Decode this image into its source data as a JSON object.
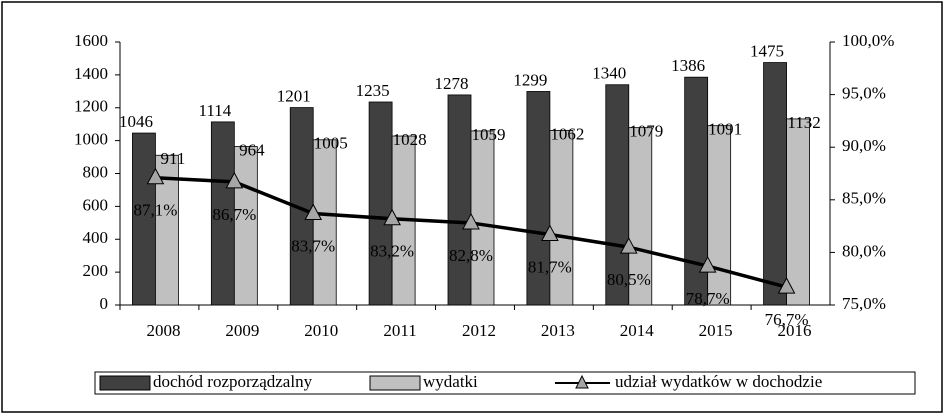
{
  "chart_data": {
    "type": "bar_line",
    "categories": [
      "2008",
      "2009",
      "2010",
      "2011",
      "2012",
      "2013",
      "2014",
      "2015",
      "2016"
    ],
    "series": [
      {
        "name": "dochód rozporządzalny",
        "color": "#404040",
        "values": [
          1046,
          1114,
          1201,
          1235,
          1278,
          1299,
          1340,
          1386,
          1475
        ]
      },
      {
        "name": "wydatki",
        "color": "#c0c0c0",
        "values": [
          911,
          964,
          1005,
          1028,
          1059,
          1062,
          1079,
          1091,
          1132
        ]
      },
      {
        "name": "udział wydatków w dochodzie",
        "color": "#000000",
        "axis": "y2",
        "values": [
          87.1,
          86.7,
          83.7,
          83.2,
          82.8,
          81.7,
          80.5,
          78.7,
          76.7
        ],
        "value_labels": [
          "87,1%",
          "86,7%",
          "83,7%",
          "83,2%",
          "82,8%",
          "81,7%",
          "80,5%",
          "78,7%",
          "76,7%"
        ]
      }
    ],
    "ylim": [
      0,
      1600
    ],
    "yticks": [
      0,
      200,
      400,
      600,
      800,
      1000,
      1200,
      1400,
      1600
    ],
    "y2lim": [
      75,
      100
    ],
    "y2ticks": [
      {
        "value": 75,
        "label": "75,0%"
      },
      {
        "value": 80,
        "label": "80,0%"
      },
      {
        "value": 85,
        "label": "85,0%"
      },
      {
        "value": 90,
        "label": "90,0%"
      },
      {
        "value": 95,
        "label": "95,0%"
      },
      {
        "value": 100,
        "label": "100,0%"
      }
    ],
    "legend": "bottom",
    "grid": false
  }
}
